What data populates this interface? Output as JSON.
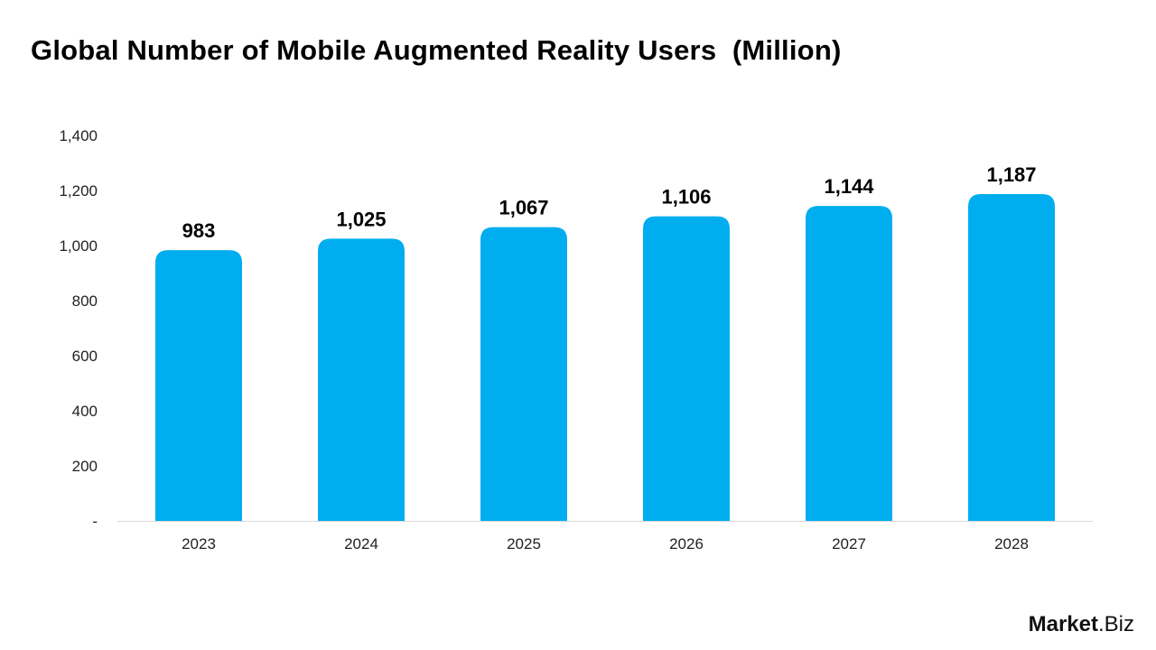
{
  "chart_data": {
    "type": "bar",
    "title": "Global Number of Mobile Augmented Reality Users  (Million)",
    "categories": [
      "2023",
      "2024",
      "2025",
      "2026",
      "2027",
      "2028"
    ],
    "values": [
      983,
      1025,
      1067,
      1106,
      1144,
      1187
    ],
    "data_labels": [
      "983",
      "1,025",
      "1,067",
      "1,106",
      "1,144",
      "1,187"
    ],
    "ylim": [
      0,
      1400
    ],
    "yticks": [
      0,
      200,
      400,
      600,
      800,
      1000,
      1200,
      1400
    ],
    "ytick_labels": [
      "-",
      "200",
      "400",
      "600",
      "800",
      "1,000",
      "1,200",
      "1,400"
    ],
    "xlabel": "",
    "ylabel": "",
    "grid": false,
    "bar_color": "#00AEEF"
  },
  "logo": {
    "bold": "Market",
    "rest": ".Biz"
  }
}
